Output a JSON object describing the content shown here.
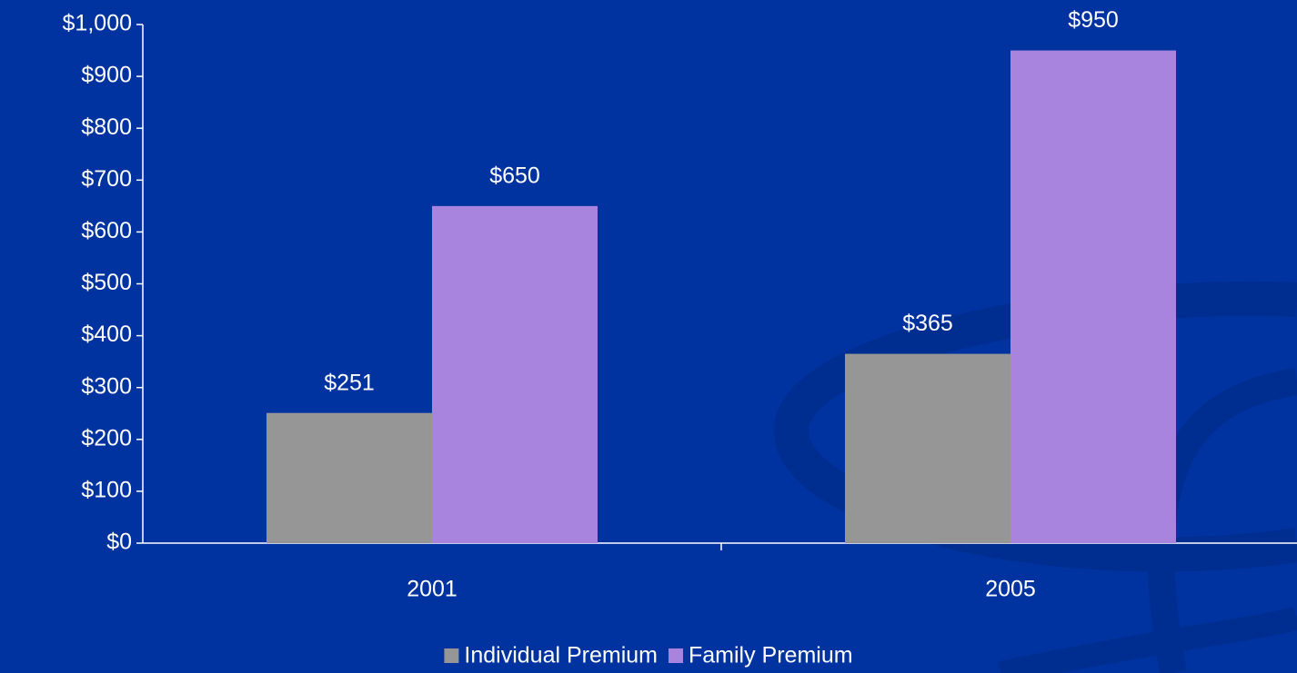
{
  "chart_data": {
    "type": "bar",
    "categories": [
      "2001",
      "2005"
    ],
    "series": [
      {
        "name": "Individual Premium",
        "color": "#969696",
        "values": [
          251,
          365
        ],
        "value_labels": [
          "$251",
          "$365"
        ]
      },
      {
        "name": "Family Premium",
        "color": "#a884de",
        "values": [
          650,
          950
        ],
        "value_labels": [
          "$650",
          "$950"
        ]
      }
    ],
    "ylim": [
      0,
      1000
    ],
    "yticks": [
      {
        "value": 0,
        "label": "$0"
      },
      {
        "value": 100,
        "label": "$100"
      },
      {
        "value": 200,
        "label": "$200"
      },
      {
        "value": 300,
        "label": "$300"
      },
      {
        "value": 400,
        "label": "$400"
      },
      {
        "value": 500,
        "label": "$500"
      },
      {
        "value": 600,
        "label": "$600"
      },
      {
        "value": 700,
        "label": "$700"
      },
      {
        "value": 800,
        "label": "$800"
      },
      {
        "value": 900,
        "label": "$900"
      },
      {
        "value": 1000,
        "label": "$1,000"
      }
    ],
    "legend": "bottom"
  }
}
